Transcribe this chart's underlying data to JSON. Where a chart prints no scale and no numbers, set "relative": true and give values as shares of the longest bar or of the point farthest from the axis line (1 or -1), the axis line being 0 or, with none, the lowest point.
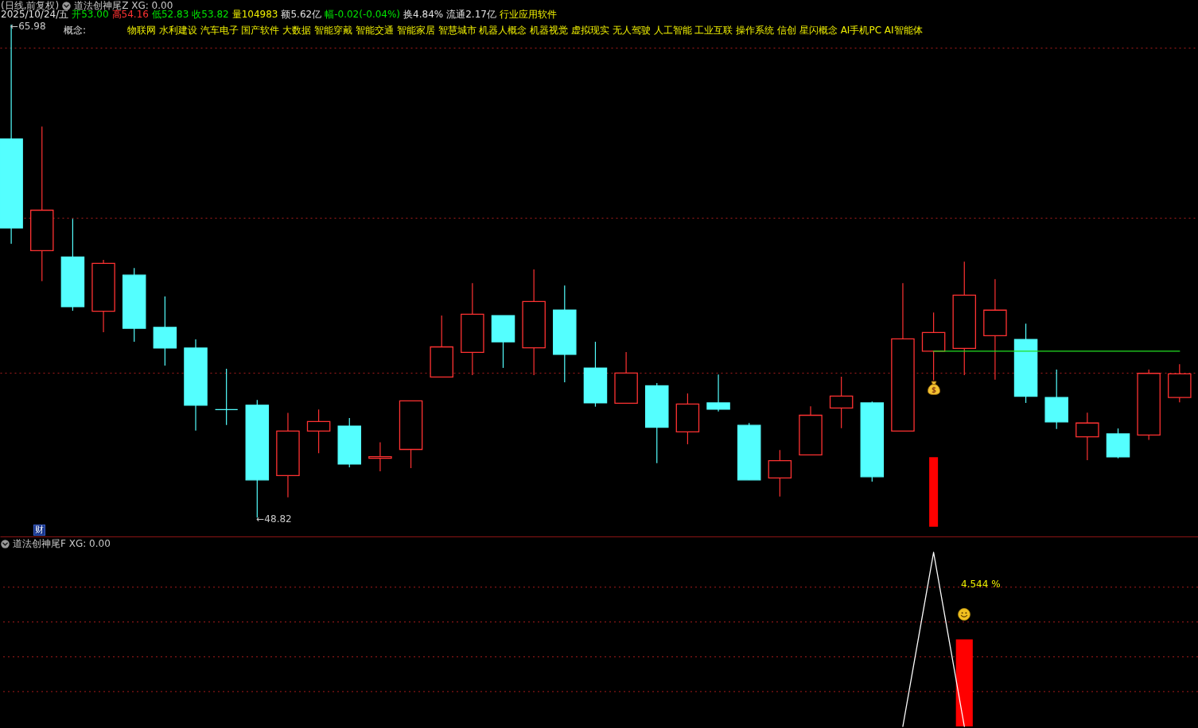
{
  "chart_data": [
    {
      "type": "candlestick",
      "title": "道法创神尾Z XG: 0.00",
      "annotations": [
        "(日线,前复权)",
        "2025/10/24/五",
        "开53.00",
        "高54.16",
        "低52.83",
        "收53.82",
        "量104983",
        "额5.62亿",
        "幅-0.02(-0.04%)",
        "换4.84%",
        "流通2.17亿",
        "行业应用软件",
        "概念:",
        "物联网 水利建设 汽车电子 国产软件 大数据 智能穿戴 智能交通 智能家居 智慧城市 机器人概念 机器视觉 虚拟现实 无人驾驶 人工智能 工业互联 操作系统 信创 星闪概念 AI手机PC AI智能体",
        "财",
        "←65.98",
        "←48.82"
      ],
      "categories": [
        null,
        null,
        null,
        null,
        null,
        null,
        null,
        null,
        null,
        null,
        null,
        null,
        null,
        null,
        null,
        null,
        null,
        null,
        null,
        null,
        null,
        null,
        null,
        null,
        null,
        null,
        null,
        null,
        null,
        null,
        null,
        null,
        null,
        null,
        null,
        null,
        null,
        null,
        null
      ],
      "ohlc": [
        [
          62.0,
          65.98,
          58.35,
          58.9
        ],
        [
          58.11,
          62.43,
          57.05,
          59.52
        ],
        [
          57.89,
          59.22,
          56.02,
          56.16
        ],
        [
          56.0,
          57.79,
          55.27,
          57.67
        ],
        [
          57.26,
          57.51,
          54.94,
          55.41
        ],
        [
          55.44,
          56.52,
          54.11,
          54.72
        ],
        [
          54.72,
          55.02,
          51.85,
          52.73
        ],
        [
          52.58,
          54.0,
          52.04,
          52.58
        ],
        [
          52.73,
          52.91,
          48.82,
          50.13
        ],
        [
          50.28,
          52.46,
          49.52,
          51.83
        ],
        [
          51.83,
          52.58,
          51.06,
          52.16
        ],
        [
          52.0,
          52.28,
          50.57,
          50.68
        ],
        [
          50.88,
          51.44,
          50.43,
          50.94
        ],
        [
          51.19,
          52.88,
          50.54,
          52.88
        ],
        [
          53.71,
          55.85,
          53.71,
          54.76
        ],
        [
          54.57,
          56.98,
          53.78,
          55.9
        ],
        [
          55.85,
          55.85,
          54.03,
          54.94
        ],
        [
          54.73,
          57.46,
          53.78,
          56.34
        ],
        [
          56.04,
          56.9,
          53.53,
          54.5
        ],
        [
          54.02,
          54.94,
          52.68,
          52.81
        ],
        [
          52.8,
          54.58,
          52.8,
          53.85
        ],
        [
          53.41,
          53.5,
          50.71,
          51.96
        ],
        [
          51.8,
          53.14,
          51.37,
          52.77
        ],
        [
          52.81,
          53.8,
          52.51,
          52.59
        ],
        [
          52.03,
          52.11,
          50.13,
          50.13
        ],
        [
          50.2,
          51.17,
          49.55,
          50.8
        ],
        [
          51.0,
          52.69,
          51.0,
          52.38
        ],
        [
          52.63,
          53.72,
          51.93,
          53.05
        ],
        [
          52.81,
          52.86,
          50.07,
          50.24
        ],
        [
          51.83,
          56.98,
          51.83,
          55.04
        ],
        [
          54.61,
          55.96,
          53.6,
          55.26
        ],
        [
          54.71,
          57.73,
          53.78,
          56.56
        ],
        [
          55.15,
          57.12,
          53.62,
          56.04
        ],
        [
          55.02,
          55.57,
          52.81,
          53.04
        ],
        [
          53.0,
          53.97,
          51.9,
          52.15
        ],
        [
          51.63,
          52.47,
          50.82,
          52.11
        ],
        [
          51.73,
          51.92,
          50.88,
          50.93
        ],
        [
          51.69,
          53.97,
          51.52,
          53.84
        ],
        [
          53.0,
          54.16,
          52.83,
          53.82
        ]
      ],
      "colors": [
        "#54ffff",
        "#ff3232",
        "#54ffff",
        "#ff3232",
        "#54ffff",
        "#54ffff",
        "#54ffff",
        "#54ffff",
        "#54ffff",
        "#ff3232",
        "#ff3232",
        "#54ffff",
        "#ff3232",
        "#ff3232",
        "#ff3232",
        "#ff3232",
        "#54ffff",
        "#ff3232",
        "#54ffff",
        "#54ffff",
        "#ff3232",
        "#54ffff",
        "#ff3232",
        "#54ffff",
        "#54ffff",
        "#ff3232",
        "#ff3232",
        "#ff3232",
        "#54ffff",
        "#ff3232",
        "#ff3232",
        "#ff3232",
        "#ff3232",
        "#54ffff",
        "#54ffff",
        "#ff3232",
        "#54ffff",
        "#ff3232",
        "#ff3232"
      ],
      "series": [
        {
          "type": "line",
          "color": "#22dd22",
          "values": [
            null,
            null,
            null,
            null,
            null,
            null,
            null,
            null,
            null,
            null,
            null,
            null,
            null,
            null,
            null,
            null,
            null,
            null,
            null,
            null,
            null,
            null,
            null,
            null,
            null,
            null,
            null,
            null,
            null,
            null,
            54.61,
            54.61,
            54.61,
            54.61,
            54.61,
            54.61,
            54.61,
            54.61,
            54.61
          ]
        },
        {
          "type": "bar",
          "color": "#ff0000",
          "values": [
            null,
            null,
            null,
            null,
            null,
            null,
            null,
            null,
            null,
            null,
            null,
            null,
            null,
            null,
            null,
            null,
            null,
            null,
            null,
            null,
            null,
            null,
            null,
            null,
            null,
            null,
            null,
            null,
            null,
            null,
            2.42,
            null,
            null,
            null,
            null,
            null,
            null,
            null,
            null
          ],
          "base": [
            null,
            null,
            null,
            null,
            null,
            null,
            null,
            null,
            null,
            null,
            null,
            null,
            null,
            null,
            null,
            null,
            null,
            null,
            null,
            null,
            null,
            null,
            null,
            null,
            null,
            null,
            null,
            null,
            null,
            null,
            48.5,
            null,
            null,
            null,
            null,
            null,
            null,
            null,
            null
          ]
        }
      ],
      "ylim": [
        48.16,
        66.12
      ],
      "yticks": [
        {
          "value": 65.18,
          "label": null
        },
        {
          "value": 59.25,
          "label": null
        },
        {
          "value": 53.86,
          "label": null
        }
      ],
      "grid": "y"
    },
    {
      "type": "line",
      "title": "道法创神尾F XG: 0.00",
      "annotations": [
        "4.544 %"
      ],
      "categories": [
        null,
        null,
        null,
        null,
        null,
        null,
        null,
        null,
        null,
        null,
        null,
        null,
        null,
        null,
        null,
        null,
        null,
        null,
        null,
        null,
        null,
        null,
        null,
        null,
        null,
        null,
        null,
        null,
        null,
        null,
        null,
        null,
        null,
        null,
        null,
        null,
        null,
        null,
        null
      ],
      "series": [
        {
          "type": "line",
          "color": "#ffffff",
          "values": [
            null,
            null,
            null,
            null,
            null,
            null,
            null,
            null,
            null,
            null,
            null,
            null,
            null,
            null,
            null,
            null,
            null,
            null,
            null,
            null,
            null,
            null,
            null,
            null,
            null,
            null,
            null,
            null,
            null,
            0,
            1,
            0,
            null,
            null,
            null,
            null,
            null,
            null,
            null
          ]
        },
        {
          "type": "bar",
          "color": "#ff0000",
          "values": [
            null,
            null,
            null,
            null,
            null,
            null,
            null,
            null,
            null,
            null,
            null,
            null,
            null,
            null,
            null,
            null,
            null,
            null,
            null,
            null,
            null,
            null,
            null,
            null,
            null,
            null,
            null,
            null,
            null,
            null,
            null,
            0.5,
            null,
            null,
            null,
            null,
            null,
            null,
            null
          ]
        }
      ],
      "ref_lines": [
        {
          "axis": "y",
          "value": 0.8,
          "color": "#a51c1c",
          "line_style": "dotted"
        },
        {
          "axis": "y",
          "value": 0.6,
          "color": "#a51c1c",
          "line_style": "dotted"
        },
        {
          "axis": "y",
          "value": 0.4,
          "color": "#a51c1c",
          "line_style": "dotted"
        },
        {
          "axis": "y",
          "value": 0.2,
          "color": "#a51c1c",
          "line_style": "dotted"
        }
      ],
      "relative": true
    }
  ]
}
